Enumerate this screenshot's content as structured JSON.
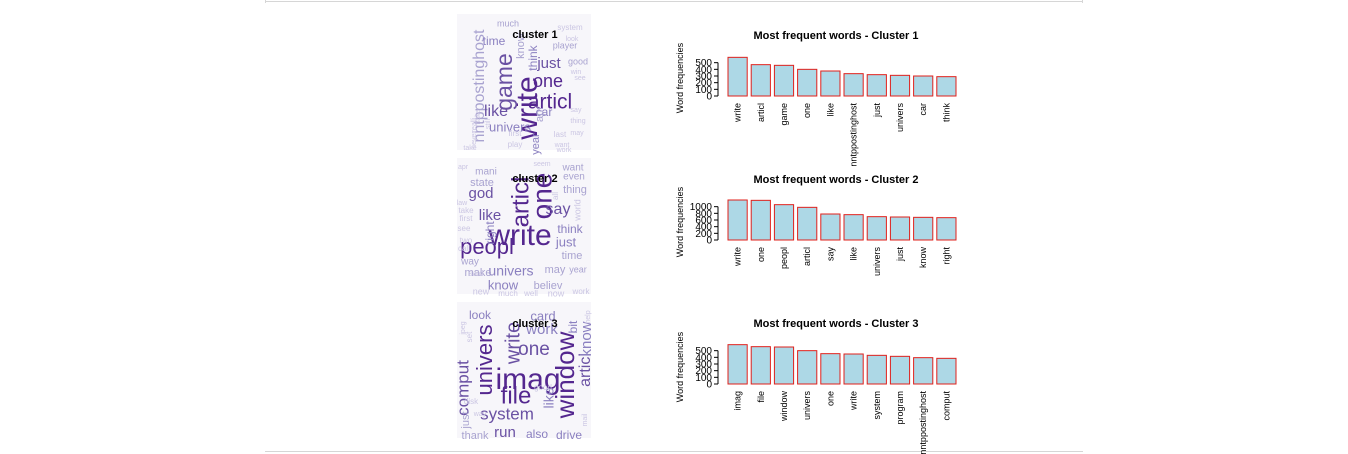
{
  "colors": {
    "bar_fill": "#add8e6",
    "bar_stroke": "#e0201b",
    "word_palette": [
      "#e2dff0",
      "#cbc6e3",
      "#a9a3d0",
      "#8b80c0",
      "#6a51a3",
      "#54278f"
    ]
  },
  "clusters": [
    {
      "id": 1,
      "label": "cluster 1",
      "words": [
        {
          "text": "write",
          "size": 30,
          "tier": 5,
          "rot": true
        },
        {
          "text": "articl",
          "size": 21,
          "tier": 5,
          "rot": false
        },
        {
          "text": "game",
          "size": 23,
          "tier": 4,
          "rot": true
        },
        {
          "text": "one",
          "size": 18,
          "tier": 5,
          "rot": false
        },
        {
          "text": "nntppostinghost",
          "size": 16,
          "tier": 2,
          "rot": true
        },
        {
          "text": "like",
          "size": 16,
          "tier": 4,
          "rot": false
        },
        {
          "text": "just",
          "size": 15,
          "tier": 4,
          "rot": false
        },
        {
          "text": "univers",
          "size": 13,
          "tier": 3,
          "rot": false
        },
        {
          "text": "think",
          "size": 12,
          "tier": 3,
          "rot": true
        },
        {
          "text": "time",
          "size": 12,
          "tier": 3,
          "rot": false
        },
        {
          "text": "car",
          "size": 12,
          "tier": 3,
          "rot": false
        },
        {
          "text": "year",
          "size": 11,
          "tier": 3,
          "rot": true
        },
        {
          "text": "know",
          "size": 11,
          "tier": 2,
          "rot": true
        },
        {
          "text": "apr",
          "size": 11,
          "tier": 2,
          "rot": true
        },
        {
          "text": "player",
          "size": 9,
          "tier": 2,
          "rot": false
        },
        {
          "text": "much",
          "size": 9,
          "tier": 2,
          "rot": false
        },
        {
          "text": "good",
          "size": 9,
          "tier": 2,
          "rot": false
        },
        {
          "text": "system",
          "size": 8,
          "tier": 1,
          "rot": false
        },
        {
          "text": "look",
          "size": 7,
          "tier": 1,
          "rot": false
        },
        {
          "text": "win",
          "size": 7,
          "tier": 1,
          "rot": false
        },
        {
          "text": "see",
          "size": 7,
          "tier": 1,
          "rot": false
        },
        {
          "text": "say",
          "size": 7,
          "tier": 1,
          "rot": false
        },
        {
          "text": "thing",
          "size": 7,
          "tier": 1,
          "rot": false
        },
        {
          "text": "last",
          "size": 8,
          "tier": 1,
          "rot": false
        },
        {
          "text": "may",
          "size": 7,
          "tier": 1,
          "rot": false
        },
        {
          "text": "first",
          "size": 8,
          "tier": 1,
          "rot": false
        },
        {
          "text": "play",
          "size": 8,
          "tier": 1,
          "rot": false
        },
        {
          "text": "want",
          "size": 7,
          "tier": 1,
          "rot": false
        },
        {
          "text": "work",
          "size": 7,
          "tier": 1,
          "rot": false
        },
        {
          "text": "take",
          "size": 7,
          "tier": 1,
          "rot": false
        },
        {
          "text": "never",
          "size": 7,
          "tier": 1,
          "rot": true
        },
        {
          "text": "realli",
          "size": 7,
          "tier": 1,
          "rot": true
        },
        {
          "text": "make",
          "size": 7,
          "tier": 1,
          "rot": true
        },
        {
          "text": "still",
          "size": 7,
          "tier": 1,
          "rot": true
        }
      ],
      "chart_data": {
        "type": "bar",
        "title": "Most frequent words - Cluster  1",
        "ylabel": "Word frequencies",
        "categories": [
          "write",
          "articl",
          "game",
          "one",
          "like",
          "nntppostinghost",
          "just",
          "univers",
          "car",
          "think"
        ],
        "values": [
          580,
          470,
          460,
          400,
          375,
          335,
          320,
          310,
          300,
          290
        ],
        "yticks": [
          0,
          100,
          200,
          300,
          400,
          500
        ],
        "ylim": [
          0,
          600
        ]
      }
    },
    {
      "id": 2,
      "label": "cluster 2",
      "words": [
        {
          "text": "write",
          "size": 30,
          "tier": 5,
          "rot": false
        },
        {
          "text": "one",
          "size": 28,
          "tier": 5,
          "rot": true
        },
        {
          "text": "articl",
          "size": 24,
          "tier": 5,
          "rot": true
        },
        {
          "text": "peopl",
          "size": 22,
          "tier": 5,
          "rot": false
        },
        {
          "text": "say",
          "size": 16,
          "tier": 4,
          "rot": false
        },
        {
          "text": "like",
          "size": 15,
          "tier": 4,
          "rot": false
        },
        {
          "text": "god",
          "size": 15,
          "tier": 4,
          "rot": false
        },
        {
          "text": "univers",
          "size": 14,
          "tier": 3,
          "rot": false
        },
        {
          "text": "know",
          "size": 13,
          "tier": 3,
          "rot": false
        },
        {
          "text": "think",
          "size": 12,
          "tier": 3,
          "rot": false
        },
        {
          "text": "just",
          "size": 13,
          "tier": 3,
          "rot": false
        },
        {
          "text": "right",
          "size": 12,
          "tier": 3,
          "rot": true
        },
        {
          "text": "time",
          "size": 11,
          "tier": 2,
          "rot": false
        },
        {
          "text": "believ",
          "size": 11,
          "tier": 2,
          "rot": false
        },
        {
          "text": "may",
          "size": 11,
          "tier": 2,
          "rot": false
        },
        {
          "text": "make",
          "size": 11,
          "tier": 2,
          "rot": false
        },
        {
          "text": "thing",
          "size": 11,
          "tier": 2,
          "rot": false
        },
        {
          "text": "state",
          "size": 11,
          "tier": 2,
          "rot": false
        },
        {
          "text": "mani",
          "size": 10,
          "tier": 2,
          "rot": false
        },
        {
          "text": "even",
          "size": 10,
          "tier": 2,
          "rot": false
        },
        {
          "text": "want",
          "size": 10,
          "tier": 2,
          "rot": false
        },
        {
          "text": "way",
          "size": 10,
          "tier": 2,
          "rot": false
        },
        {
          "text": "year",
          "size": 9,
          "tier": 2,
          "rot": false
        },
        {
          "text": "world",
          "size": 9,
          "tier": 1,
          "rot": true
        },
        {
          "text": "take",
          "size": 8,
          "tier": 1,
          "rot": false
        },
        {
          "text": "see",
          "size": 8,
          "tier": 1,
          "rot": false
        },
        {
          "text": "first",
          "size": 8,
          "tier": 1,
          "rot": false
        },
        {
          "text": "two",
          "size": 8,
          "tier": 1,
          "rot": false
        },
        {
          "text": "call",
          "size": 8,
          "tier": 1,
          "rot": false
        },
        {
          "text": "said",
          "size": 8,
          "tier": 1,
          "rot": false
        },
        {
          "text": "new",
          "size": 9,
          "tier": 1,
          "rot": false
        },
        {
          "text": "much",
          "size": 8,
          "tier": 1,
          "rot": false
        },
        {
          "text": "well",
          "size": 8,
          "tier": 1,
          "rot": false
        },
        {
          "text": "now",
          "size": 9,
          "tier": 1,
          "rot": false
        },
        {
          "text": "work",
          "size": 8,
          "tier": 1,
          "rot": false
        },
        {
          "text": "apr",
          "size": 7,
          "tier": 1,
          "rot": false
        },
        {
          "text": "law",
          "size": 7,
          "tier": 1,
          "rot": false
        },
        {
          "text": "seem",
          "size": 7,
          "tier": 1,
          "rot": false
        },
        {
          "text": "all",
          "size": 8,
          "tier": 1,
          "rot": true
        }
      ],
      "chart_data": {
        "type": "bar",
        "title": "Most frequent words - Cluster  2",
        "ylabel": "Word frequencies",
        "categories": [
          "write",
          "one",
          "peopl",
          "articl",
          "say",
          "like",
          "univers",
          "just",
          "know",
          "right"
        ],
        "values": [
          1200,
          1190,
          1060,
          980,
          780,
          760,
          700,
          690,
          680,
          670
        ],
        "yticks": [
          0,
          200,
          400,
          600,
          800,
          1000
        ],
        "ylim": [
          0,
          1200
        ]
      }
    },
    {
      "id": 3,
      "label": "cluster 3",
      "words": [
        {
          "text": "imag",
          "size": 30,
          "tier": 5,
          "rot": false
        },
        {
          "text": "window",
          "size": 26,
          "tier": 5,
          "rot": true
        },
        {
          "text": "file",
          "size": 24,
          "tier": 5,
          "rot": false
        },
        {
          "text": "univers",
          "size": 22,
          "tier": 5,
          "rot": true
        },
        {
          "text": "write",
          "size": 20,
          "tier": 4,
          "rot": true
        },
        {
          "text": "one",
          "size": 19,
          "tier": 4,
          "rot": false
        },
        {
          "text": "system",
          "size": 17,
          "tier": 4,
          "rot": false
        },
        {
          "text": "comput",
          "size": 17,
          "tier": 4,
          "rot": true
        },
        {
          "text": "articl",
          "size": 16,
          "tier": 4,
          "rot": true
        },
        {
          "text": "know",
          "size": 15,
          "tier": 3,
          "rot": true
        },
        {
          "text": "work",
          "size": 15,
          "tier": 3,
          "rot": false
        },
        {
          "text": "like",
          "size": 14,
          "tier": 3,
          "rot": true
        },
        {
          "text": "run",
          "size": 15,
          "tier": 4,
          "rot": false
        },
        {
          "text": "card",
          "size": 13,
          "tier": 3,
          "rot": false
        },
        {
          "text": "look",
          "size": 12,
          "tier": 3,
          "rot": false
        },
        {
          "text": "drive",
          "size": 12,
          "tier": 3,
          "rot": false
        },
        {
          "text": "also",
          "size": 12,
          "tier": 3,
          "rot": false
        },
        {
          "text": "thank",
          "size": 11,
          "tier": 2,
          "rot": false
        },
        {
          "text": "just",
          "size": 11,
          "tier": 2,
          "rot": true
        },
        {
          "text": "bit",
          "size": 12,
          "tier": 3,
          "rot": true
        },
        {
          "text": "good",
          "size": 8,
          "tier": 1,
          "rot": false
        },
        {
          "text": "disk",
          "size": 8,
          "tier": 1,
          "rot": false
        },
        {
          "text": "set",
          "size": 8,
          "tier": 1,
          "rot": true
        },
        {
          "text": "mail",
          "size": 7,
          "tier": 1,
          "rot": true
        },
        {
          "text": "way",
          "size": 7,
          "tier": 1,
          "rot": false
        },
        {
          "text": "jpeg",
          "size": 7,
          "tier": 1,
          "rot": true
        },
        {
          "text": "help",
          "size": 7,
          "tier": 1,
          "rot": true
        }
      ],
      "chart_data": {
        "type": "bar",
        "title": "Most frequent words - Cluster  3",
        "ylabel": "Word frequencies",
        "categories": [
          "imag",
          "file",
          "window",
          "univers",
          "one",
          "write",
          "system",
          "program",
          "nntppostinghost",
          "comput"
        ],
        "values": [
          590,
          560,
          555,
          500,
          455,
          450,
          430,
          415,
          395,
          385
        ],
        "yticks": [
          0,
          100,
          200,
          300,
          400,
          500
        ],
        "ylim": [
          0,
          600
        ]
      }
    }
  ]
}
